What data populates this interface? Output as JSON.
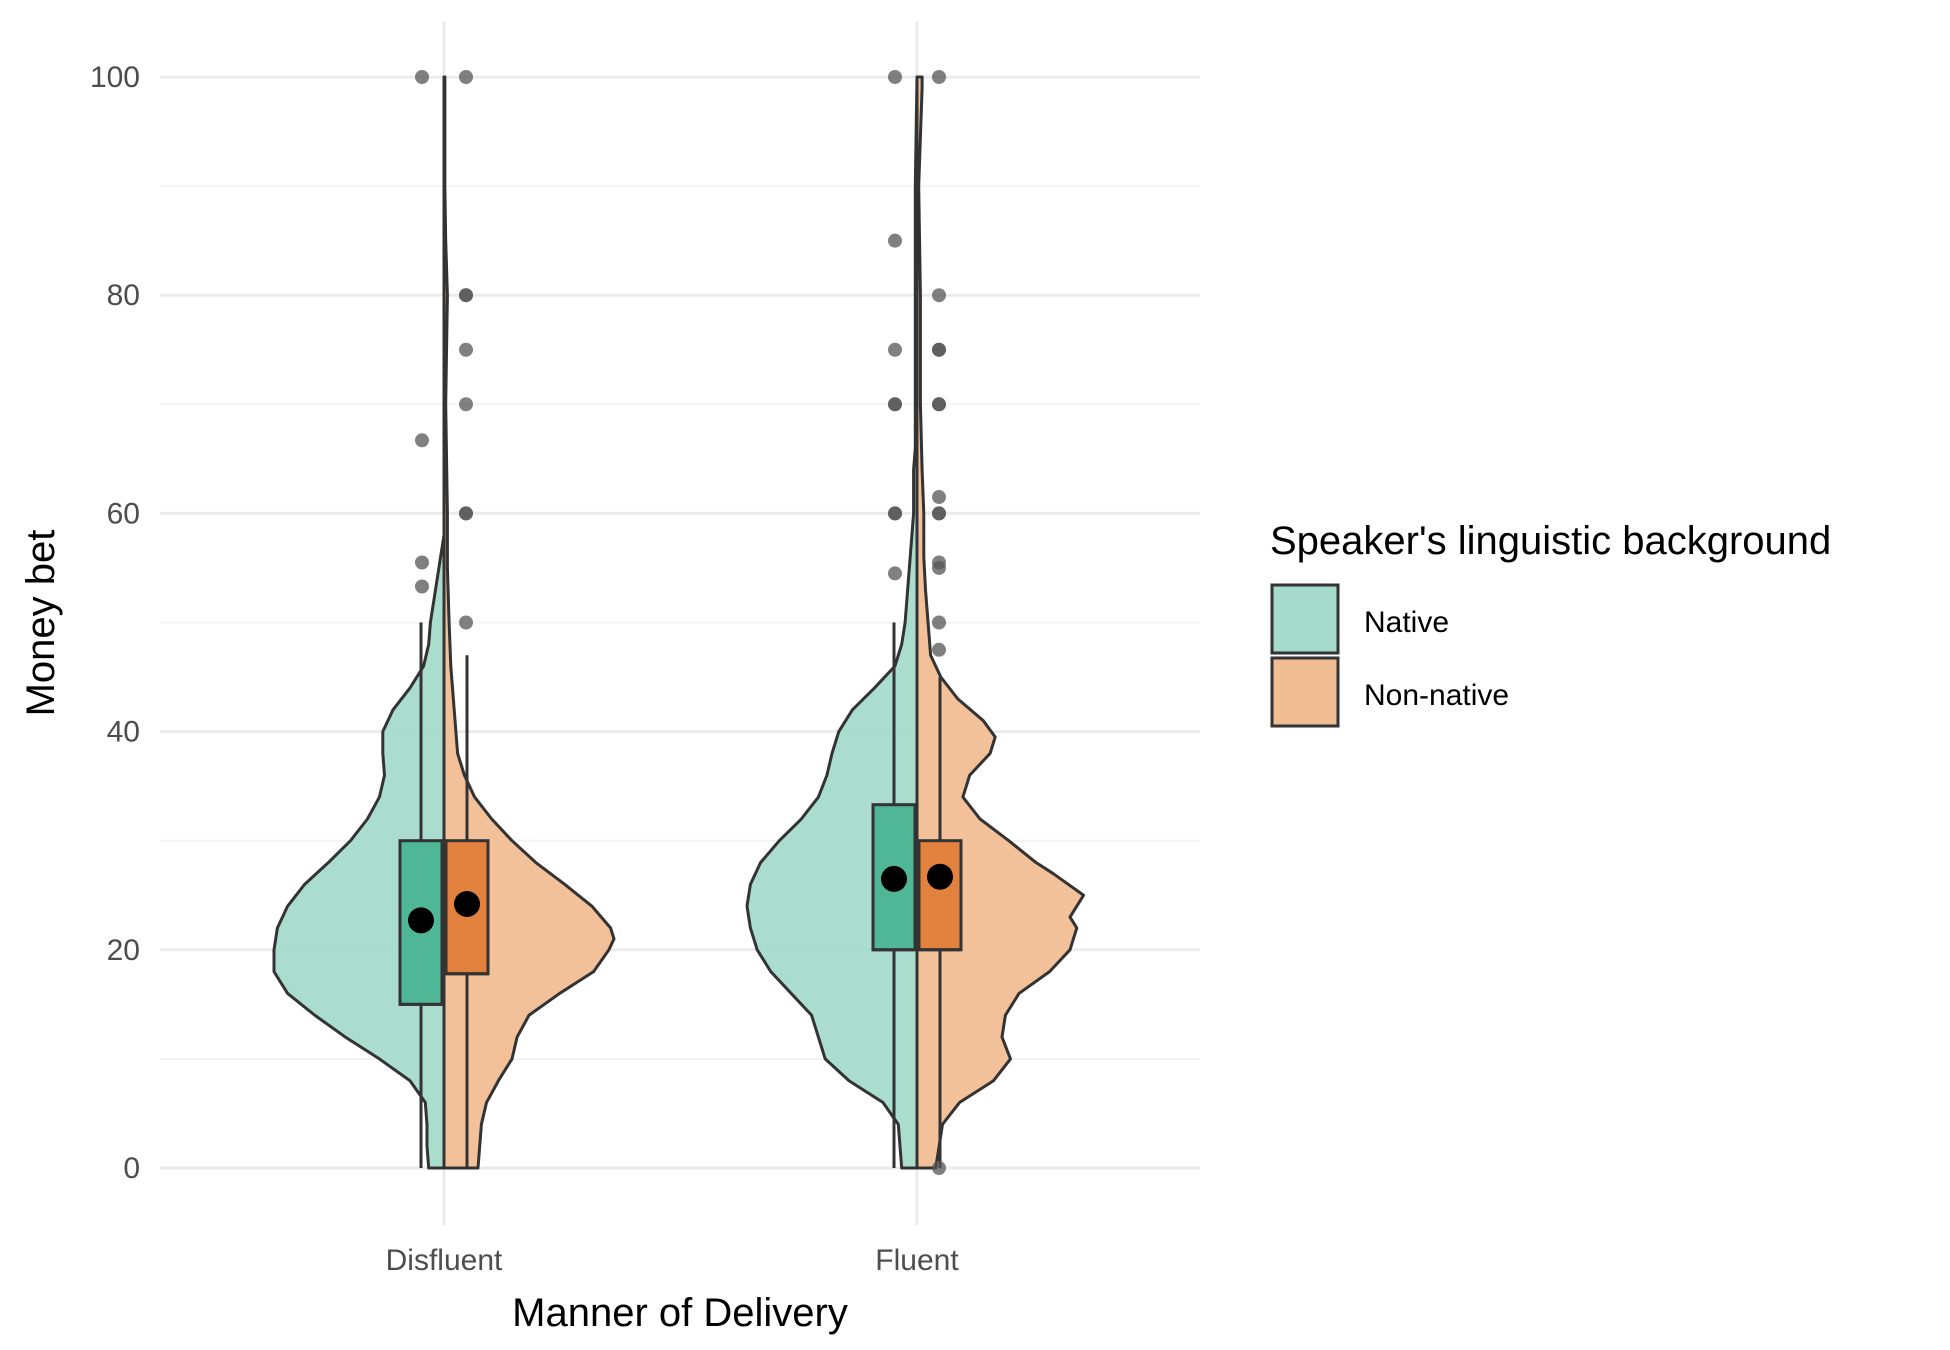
{
  "chart_data": {
    "type": "violin",
    "xlabel": "Manner of Delivery",
    "ylabel": "Money bet",
    "ylim": [
      -5,
      105
    ],
    "yticks": [
      "0",
      "20",
      "40",
      "60",
      "80",
      "100"
    ],
    "categories": [
      "Disfluent",
      "Fluent"
    ],
    "grid": true,
    "legend": {
      "title": "Speaker's linguistic background",
      "position": "right",
      "items": [
        {
          "label": "Native",
          "fill": "#a6dbcb"
        },
        {
          "label": "Non-native",
          "fill": "#f1be94"
        }
      ]
    },
    "colors": {
      "native_violin": "#a6dbcb",
      "native_box": "#4fb696",
      "nonnative_violin": "#f1be94",
      "nonnative_box": "#e2823e",
      "outline": "#333333",
      "point": "#555555",
      "mean": "#000000"
    },
    "series": [
      {
        "name": "Native",
        "groups": [
          {
            "category": "Disfluent",
            "box": {
              "lower_whisker": 0,
              "q1": 15,
              "median": 15,
              "q3": 30,
              "upper_whisker": 50
            },
            "mean": 22.7,
            "outliers": [
              53.3,
              55.5,
              66.7,
              100
            ],
            "density": [
              [
                0,
                0.09
              ],
              [
                2,
                0.1
              ],
              [
                4,
                0.1
              ],
              [
                6,
                0.11
              ],
              [
                8,
                0.2
              ],
              [
                10,
                0.38
              ],
              [
                12,
                0.58
              ],
              [
                14,
                0.76
              ],
              [
                16,
                0.92
              ],
              [
                18,
                1.0
              ],
              [
                20,
                1.0
              ],
              [
                22,
                0.98
              ],
              [
                24,
                0.92
              ],
              [
                26,
                0.82
              ],
              [
                28,
                0.68
              ],
              [
                30,
                0.55
              ],
              [
                32,
                0.45
              ],
              [
                34,
                0.38
              ],
              [
                36,
                0.35
              ],
              [
                38,
                0.36
              ],
              [
                40,
                0.36
              ],
              [
                42,
                0.3
              ],
              [
                44,
                0.2
              ],
              [
                46,
                0.12
              ],
              [
                48,
                0.09
              ],
              [
                50,
                0.08
              ],
              [
                52,
                0.06
              ],
              [
                54,
                0.04
              ],
              [
                56,
                0.02
              ],
              [
                58,
                0.0
              ]
            ]
          },
          {
            "category": "Fluent",
            "box": {
              "lower_whisker": 0,
              "q1": 20,
              "median": 20,
              "q3": 33.3,
              "upper_whisker": 50
            },
            "mean": 26.5,
            "outliers": [
              54.5,
              60,
              60,
              70,
              70,
              75,
              85,
              100
            ],
            "density": [
              [
                0,
                0.09
              ],
              [
                2,
                0.1
              ],
              [
                4,
                0.11
              ],
              [
                6,
                0.2
              ],
              [
                8,
                0.4
              ],
              [
                10,
                0.54
              ],
              [
                12,
                0.58
              ],
              [
                14,
                0.62
              ],
              [
                16,
                0.74
              ],
              [
                18,
                0.86
              ],
              [
                20,
                0.94
              ],
              [
                22,
                0.98
              ],
              [
                24,
                1.0
              ],
              [
                26,
                0.98
              ],
              [
                28,
                0.92
              ],
              [
                30,
                0.81
              ],
              [
                32,
                0.68
              ],
              [
                34,
                0.58
              ],
              [
                36,
                0.53
              ],
              [
                38,
                0.5
              ],
              [
                40,
                0.46
              ],
              [
                42,
                0.38
              ],
              [
                44,
                0.25
              ],
              [
                46,
                0.13
              ],
              [
                48,
                0.09
              ],
              [
                50,
                0.07
              ],
              [
                52,
                0.06
              ],
              [
                54,
                0.05
              ],
              [
                56,
                0.04
              ],
              [
                58,
                0.03
              ],
              [
                60,
                0.02
              ],
              [
                62,
                0.02
              ],
              [
                64,
                0.02
              ],
              [
                66,
                0.01
              ],
              [
                70,
                0.01
              ],
              [
                75,
                0.01
              ],
              [
                80,
                0.01
              ],
              [
                90,
                0.01
              ],
              [
                100,
                0.0
              ]
            ]
          }
        ]
      },
      {
        "name": "Non-native",
        "groups": [
          {
            "category": "Disfluent",
            "box": {
              "lower_whisker": 0,
              "q1": 17.8,
              "median": 17.8,
              "q3": 30,
              "upper_whisker": 47
            },
            "mean": 24.2,
            "outliers": [
              50,
              60,
              60,
              70,
              75,
              80,
              80,
              100
            ],
            "density": [
              [
                0,
                0.2
              ],
              [
                2,
                0.21
              ],
              [
                4,
                0.22
              ],
              [
                6,
                0.25
              ],
              [
                8,
                0.32
              ],
              [
                10,
                0.4
              ],
              [
                12,
                0.43
              ],
              [
                14,
                0.5
              ],
              [
                16,
                0.68
              ],
              [
                18,
                0.88
              ],
              [
                20,
                0.97
              ],
              [
                21,
                1.0
              ],
              [
                22,
                0.98
              ],
              [
                24,
                0.87
              ],
              [
                26,
                0.71
              ],
              [
                28,
                0.54
              ],
              [
                30,
                0.4
              ],
              [
                32,
                0.28
              ],
              [
                34,
                0.18
              ],
              [
                36,
                0.12
              ],
              [
                38,
                0.08
              ],
              [
                40,
                0.07
              ],
              [
                42,
                0.06
              ],
              [
                44,
                0.05
              ],
              [
                46,
                0.04
              ],
              [
                50,
                0.03
              ],
              [
                55,
                0.02
              ],
              [
                60,
                0.02
              ],
              [
                70,
                0.01
              ],
              [
                80,
                0.02
              ],
              [
                85,
                0.01
              ],
              [
                90,
                0.005
              ],
              [
                100,
                0.005
              ]
            ]
          },
          {
            "category": "Fluent",
            "box": {
              "lower_whisker": 0,
              "q1": 20,
              "median": 20,
              "q3": 30,
              "upper_whisker": 45
            },
            "mean": 26.7,
            "outliers": [
              0,
              47.5,
              50,
              55,
              55.5,
              60,
              60,
              61.5,
              70,
              70,
              75,
              75,
              80,
              100
            ],
            "density": [
              [
                0,
                0.11
              ],
              [
                2,
                0.13
              ],
              [
                4,
                0.15
              ],
              [
                6,
                0.25
              ],
              [
                8,
                0.45
              ],
              [
                10,
                0.55
              ],
              [
                12,
                0.5
              ],
              [
                14,
                0.52
              ],
              [
                16,
                0.6
              ],
              [
                18,
                0.78
              ],
              [
                20,
                0.9
              ],
              [
                22,
                0.94
              ],
              [
                23,
                0.9
              ],
              [
                25,
                0.98
              ],
              [
                27,
                0.8
              ],
              [
                28,
                0.7
              ],
              [
                30,
                0.54
              ],
              [
                32,
                0.37
              ],
              [
                34,
                0.27
              ],
              [
                36,
                0.31
              ],
              [
                38,
                0.43
              ],
              [
                39.5,
                0.46
              ],
              [
                41,
                0.39
              ],
              [
                43,
                0.24
              ],
              [
                45,
                0.14
              ],
              [
                47,
                0.08
              ],
              [
                49,
                0.07
              ],
              [
                51,
                0.06
              ],
              [
                53,
                0.05
              ],
              [
                56,
                0.04
              ],
              [
                60,
                0.04
              ],
              [
                64,
                0.03
              ],
              [
                70,
                0.02
              ],
              [
                80,
                0.02
              ],
              [
                90,
                0.01
              ],
              [
                99,
                0.03
              ],
              [
                100,
                0.03
              ]
            ]
          }
        ]
      }
    ]
  }
}
